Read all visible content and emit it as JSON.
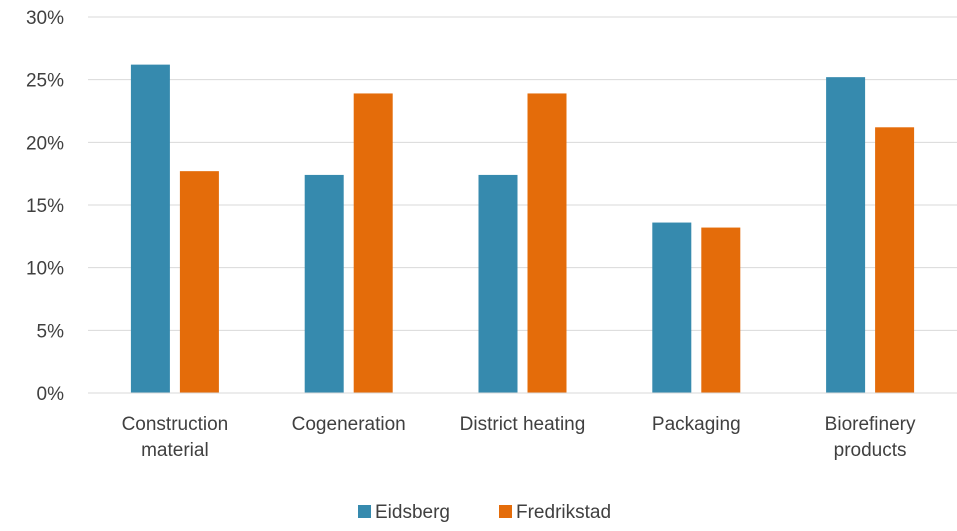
{
  "chart_data": {
    "type": "bar",
    "categories": [
      [
        "Construction",
        "material"
      ],
      [
        "Cogeneration"
      ],
      [
        "District heating"
      ],
      [
        "Packaging"
      ],
      [
        "Biorefinery",
        "products"
      ]
    ],
    "series": [
      {
        "name": "Eidsberg",
        "color": "#368AAE",
        "values": [
          26.2,
          17.4,
          17.4,
          13.6,
          25.2
        ]
      },
      {
        "name": "Fredrikstad",
        "color": "#E46C0A",
        "values": [
          17.7,
          23.9,
          23.9,
          13.2,
          21.2
        ]
      }
    ],
    "ylim": [
      0,
      30
    ],
    "yticks": [
      "0%",
      "5%",
      "10%",
      "15%",
      "20%",
      "25%",
      "30%"
    ],
    "grid": true,
    "legend_position": "bottom",
    "title": "",
    "xlabel": "",
    "ylabel": ""
  }
}
